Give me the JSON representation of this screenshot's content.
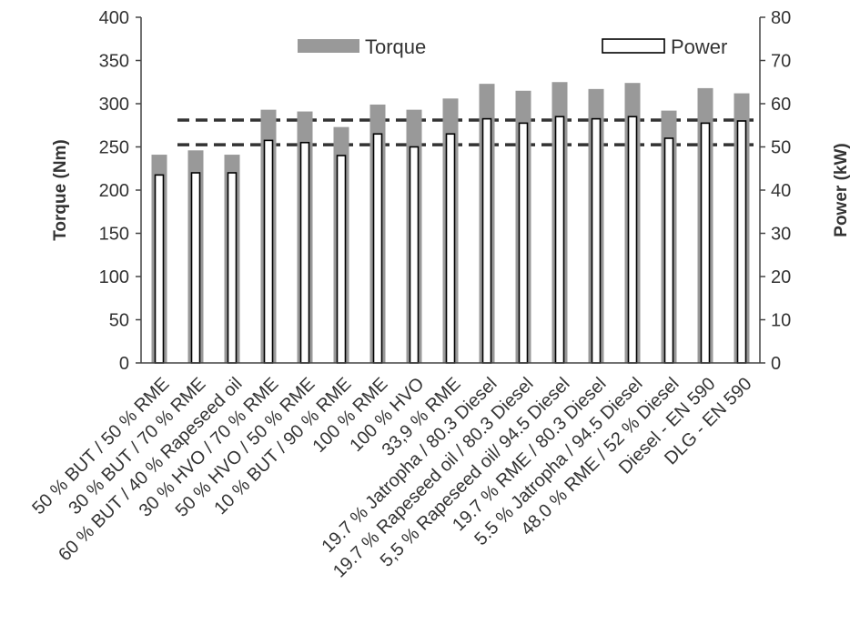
{
  "chart_data": {
    "type": "bar",
    "categories": [
      "50 % BUT / 50 % RME",
      "30 % BUT / 70 % RME",
      "60 % BUT / 40 % Rapeseed oil",
      "30 % HVO / 70 % RME",
      "50 % HVO / 50 % RME",
      "10 % BUT / 90 % RME",
      "100 % RME",
      "100 % HVO",
      "33,9 % RME",
      "19.7 % Jatropha / 80.3 Diesel",
      "19.7 % Rapeseed oil / 80.3 Diesel",
      "5,5 % Rapeseed oil/ 94.5 Diesel",
      "19.7 % RME / 80.3 Diesel",
      "5.5 % Jatropha / 94.5 Diesel",
      "48.0 % RME / 52 % Diesel",
      "Diesel - EN 590",
      "DLG - EN 590"
    ],
    "series": [
      {
        "name": "Torque",
        "axis": "left",
        "color": "#999999",
        "values": [
          241,
          246,
          241,
          293,
          291,
          273,
          299,
          293,
          306,
          323,
          315,
          325,
          317,
          324,
          292,
          318,
          312
        ]
      },
      {
        "name": "Power",
        "axis": "right",
        "color": "#ffffff",
        "values": [
          43.5,
          44,
          44,
          51.5,
          51,
          48,
          53,
          50,
          53,
          56.5,
          55.5,
          57,
          56.5,
          57,
          52,
          55.5,
          56
        ]
      }
    ],
    "reference_lines": [
      {
        "axis": "right",
        "value": 56.2,
        "style": "dashed"
      },
      {
        "axis": "right",
        "value": 50.5,
        "style": "dashed"
      }
    ],
    "ylabel": "Torque (Nm)",
    "y2label": "Power (kW)",
    "ylim": [
      0,
      400
    ],
    "y2lim": [
      0,
      80
    ],
    "yticks": [
      "0",
      "50",
      "100",
      "150",
      "200",
      "250",
      "300",
      "350",
      "400"
    ],
    "y2ticks": [
      "0",
      "10",
      "20",
      "30",
      "40",
      "50",
      "60",
      "70",
      "80"
    ],
    "legend_position": "top",
    "grid": false
  }
}
